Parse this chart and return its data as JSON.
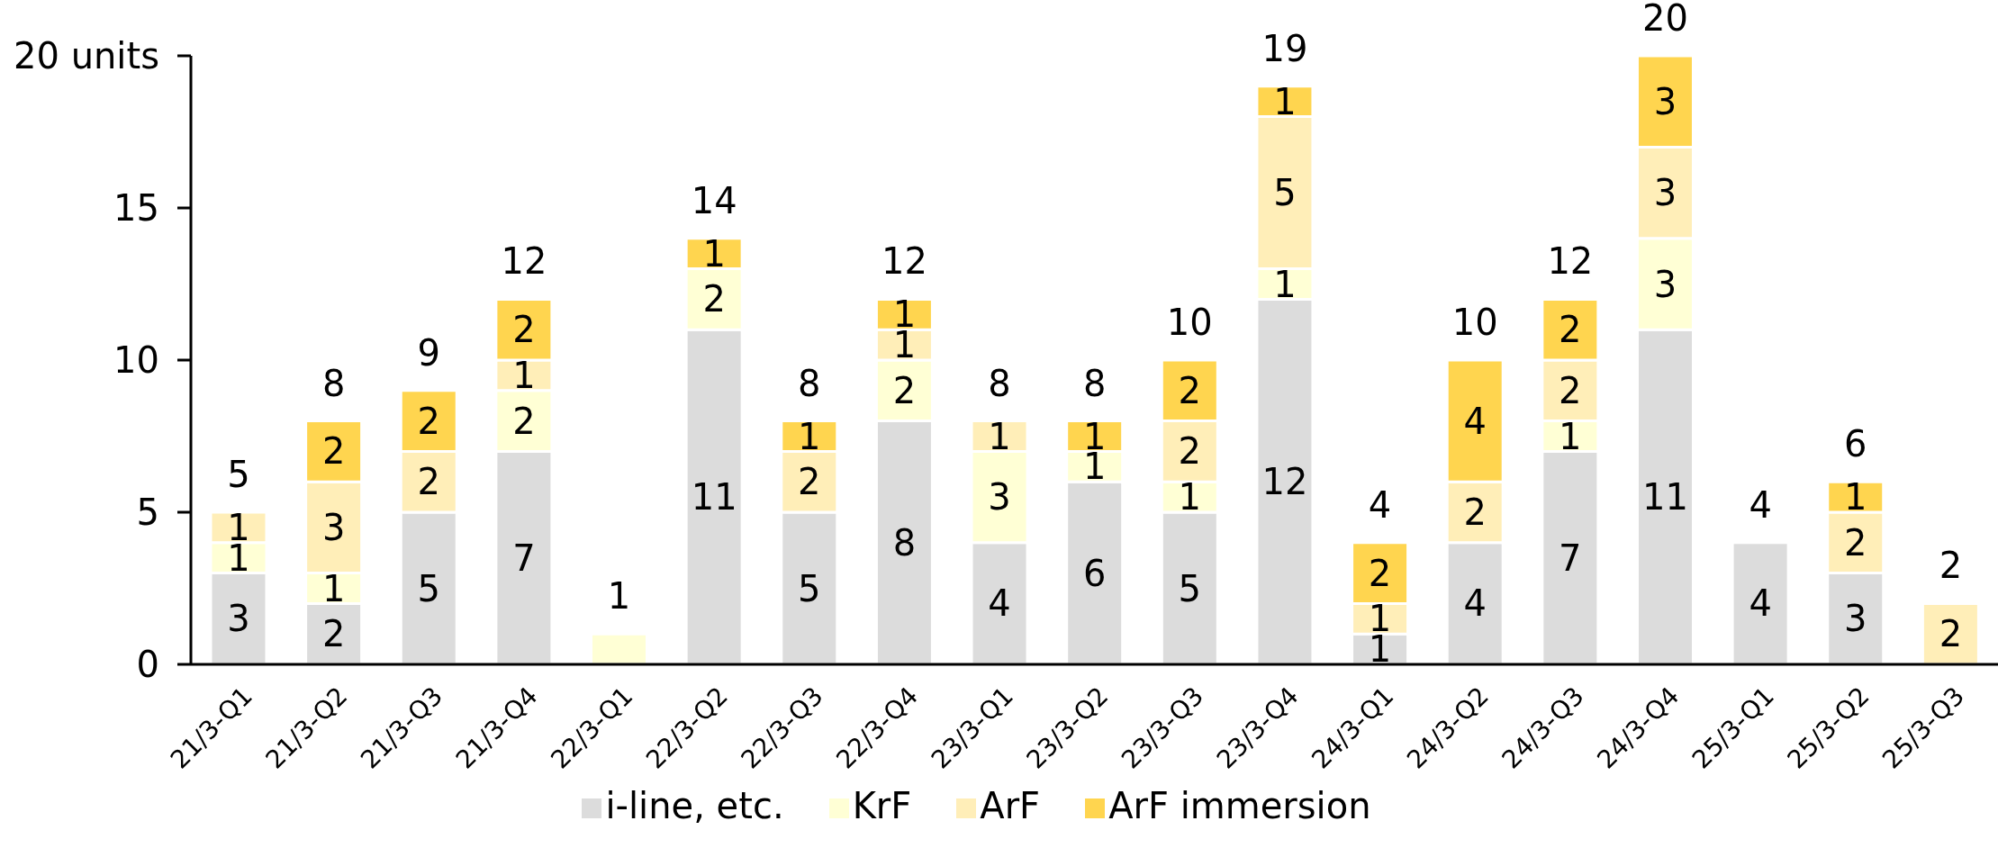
{
  "chart_data": {
    "type": "bar",
    "stacked": true,
    "categories": [
      "21/3-Q1",
      "21/3-Q2",
      "21/3-Q3",
      "21/3-Q4",
      "22/3-Q1",
      "22/3-Q2",
      "22/3-Q3",
      "22/3-Q4",
      "23/3-Q1",
      "23/3-Q2",
      "23/3-Q3",
      "23/3-Q4",
      "24/3-Q1",
      "24/3-Q2",
      "24/3-Q3",
      "24/3-Q4",
      "25/3-Q1",
      "25/3-Q2",
      "25/3-Q3"
    ],
    "series": [
      {
        "name": "i-line, etc.",
        "color": "#dcdcdc",
        "values": [
          3,
          2,
          5,
          7,
          null,
          11,
          5,
          8,
          4,
          6,
          5,
          12,
          1,
          4,
          7,
          11,
          4,
          3,
          null
        ],
        "value_labels": [
          "3",
          "2",
          "5",
          "7",
          null,
          "11",
          "5",
          "8",
          "4",
          "6",
          "5",
          "12",
          "1",
          "4",
          "7",
          "11",
          "4",
          "3",
          null
        ]
      },
      {
        "name": "KrF",
        "color": "#ffffd5",
        "values": [
          1,
          1,
          null,
          2,
          1,
          2,
          null,
          2,
          3,
          1,
          1,
          1,
          null,
          null,
          1,
          3,
          null,
          null,
          null
        ],
        "value_labels": [
          "1",
          "1",
          null,
          "2",
          null,
          "2",
          null,
          "2",
          "3",
          "1",
          "1",
          "1",
          null,
          null,
          "1",
          "3",
          null,
          null,
          null
        ]
      },
      {
        "name": "ArF",
        "color": "#ffeeb8",
        "values": [
          1,
          3,
          2,
          1,
          null,
          null,
          2,
          1,
          1,
          null,
          2,
          5,
          1,
          2,
          2,
          3,
          null,
          2,
          2
        ],
        "value_labels": [
          "1",
          "3",
          "2",
          "1",
          null,
          null,
          "2",
          "1",
          "1",
          null,
          "2",
          "5",
          "1",
          "2",
          "2",
          "3",
          null,
          "2",
          "2"
        ]
      },
      {
        "name": "ArF immersion",
        "color": "#ffd54f",
        "values": [
          null,
          2,
          2,
          2,
          null,
          1,
          1,
          1,
          null,
          1,
          2,
          1,
          2,
          4,
          2,
          3,
          null,
          1,
          null
        ],
        "value_labels": [
          null,
          "2",
          "2",
          "2",
          null,
          "1",
          "1",
          "1",
          null,
          "1",
          "2",
          "1",
          "2",
          "4",
          "2",
          "3",
          null,
          "1",
          null
        ]
      }
    ],
    "totals": [
      "5",
      "8",
      "9",
      "12",
      "1",
      "14",
      "8",
      "12",
      "8",
      "8",
      "10",
      "19",
      "4",
      "10",
      "12",
      "20",
      "4",
      "6",
      "2"
    ],
    "ylim": [
      0,
      20
    ],
    "yticks": [
      0,
      5,
      10,
      15,
      {
        "value": 20,
        "label": "20 units"
      }
    ],
    "legend": "bottom"
  }
}
